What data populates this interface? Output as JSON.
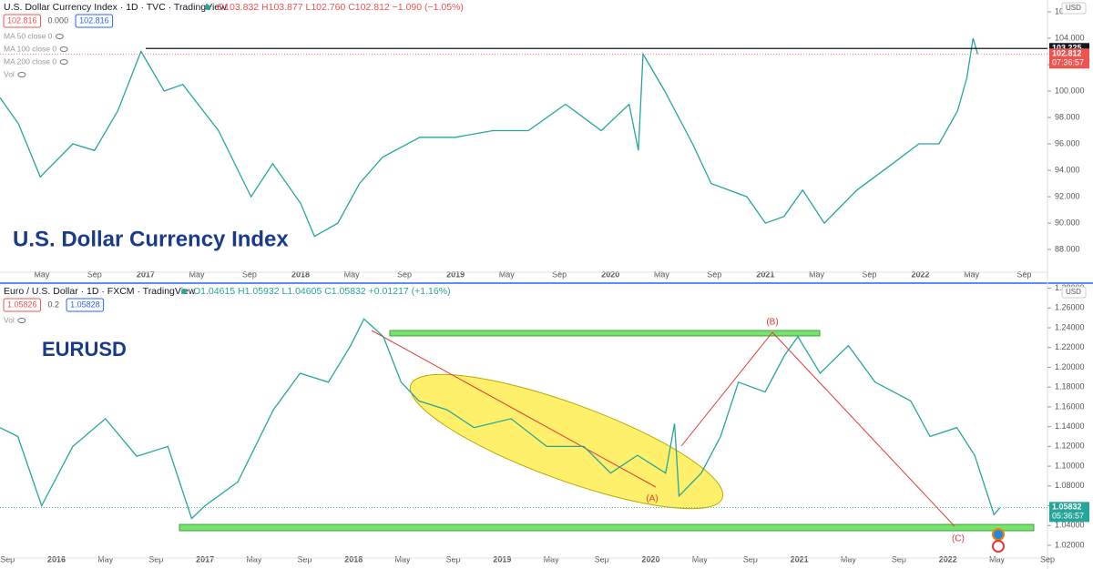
{
  "chart_data": [
    {
      "type": "line",
      "title": "U.S. Dollar Currency Index · 1D · TVC · TradingView",
      "ohlc": "O103.832 H103.877 L102.760 C102.812 −1.090 (−1.05%)",
      "legend_values": [
        "102.816",
        "0.000",
        "102.816"
      ],
      "indicators": [
        "MA 50 close 0",
        "MA 100 close 0",
        "MA 200 close 0",
        "Vol"
      ],
      "watermark": "U.S. Dollar Currency Index",
      "currency": "USD",
      "color": "#26a69a",
      "x": [
        2016.06,
        2016.18,
        2016.32,
        2016.53,
        2016.67,
        2016.82,
        2016.97,
        2017.12,
        2017.24,
        2017.47,
        2017.68,
        2017.82,
        2018.0,
        2018.09,
        2018.24,
        2018.38,
        2018.53,
        2018.77,
        2019.0,
        2019.24,
        2019.47,
        2019.71,
        2019.94,
        2020.12,
        2020.18,
        2020.21,
        2020.35,
        2020.53,
        2020.65,
        2020.88,
        2021.0,
        2021.12,
        2021.24,
        2021.38,
        2021.59,
        2021.82,
        2021.99,
        2022.12,
        2022.24,
        2022.3,
        2022.34,
        2022.37
      ],
      "values": [
        99.5,
        97.5,
        93.5,
        96,
        95.5,
        98.5,
        103,
        100,
        100.5,
        97,
        92,
        94.5,
        91.5,
        89,
        90,
        93,
        95,
        96.5,
        96.5,
        97,
        97,
        99,
        97,
        99,
        95.5,
        102.8,
        100,
        96,
        93,
        92,
        90,
        90.5,
        92.5,
        90,
        92.5,
        94.5,
        96,
        96,
        98.5,
        101,
        104,
        102.8
      ],
      "xlim": [
        2016.06,
        2022.82
      ],
      "xticks": [
        {
          "value": 2016.33,
          "label": "May"
        },
        {
          "value": 2016.67,
          "label": "Sep"
        },
        2017,
        {
          "value": 2017.33,
          "label": "May"
        },
        {
          "value": 2017.67,
          "label": "Sep"
        },
        2018,
        {
          "value": 2018.33,
          "label": "May"
        },
        {
          "value": 2018.67,
          "label": "Sep"
        },
        2019,
        {
          "value": 2019.33,
          "label": "May"
        },
        {
          "value": 2019.67,
          "label": "Sep"
        },
        2020,
        {
          "value": 2020.33,
          "label": "May"
        },
        {
          "value": 2020.67,
          "label": "Sep"
        },
        2021,
        {
          "value": 2021.33,
          "label": "May"
        },
        {
          "value": 2021.67,
          "label": "Sep"
        },
        2022,
        {
          "value": 2022.33,
          "label": "May"
        },
        {
          "value": 2022.67,
          "label": "Sep"
        }
      ],
      "ylim": [
        86.35,
        106.07
      ],
      "yticks": [
        {
          "value": 88,
          "label": "88.000"
        },
        {
          "value": 90,
          "label": "90.000"
        },
        {
          "value": 92,
          "label": "92.000"
        },
        {
          "value": 94,
          "label": "94.000"
        },
        {
          "value": 96,
          "label": "96.000"
        },
        {
          "value": 98,
          "label": "98.000"
        },
        {
          "value": 100,
          "label": "100.000"
        },
        {
          "value": 102,
          "label": "102.000"
        },
        {
          "value": 104,
          "label": "104.000"
        },
        {
          "value": 106,
          "label": "106.000"
        }
      ],
      "hline": 103.225,
      "last_price": 102.812,
      "last_color": "#ef5350",
      "countdown": "07:36:57"
    },
    {
      "type": "line",
      "title": "Euro / U.S. Dollar · 1D · FXCM · TradingView",
      "ohlc": "O1.04615 H1.05932 L1.04605 C1.05832 +0.01217 (+1.16%)",
      "legend_values": [
        "1.05826",
        "0.2",
        "1.05828"
      ],
      "indicators": [
        "Vol"
      ],
      "watermark": "EURUSD",
      "currency": "USD",
      "color": "#26a69a",
      "annotations": [
        "(A)",
        "(B)",
        "(C)"
      ],
      "x": [
        2015.62,
        2015.74,
        2015.9,
        2016.11,
        2016.33,
        2016.54,
        2016.75,
        2016.91,
        2017.0,
        2017.22,
        2017.46,
        2017.64,
        2017.83,
        2017.98,
        2018.07,
        2018.2,
        2018.32,
        2018.44,
        2018.63,
        2018.81,
        2019.06,
        2019.3,
        2019.55,
        2019.73,
        2019.91,
        2020.1,
        2020.16,
        2020.19,
        2020.34,
        2020.47,
        2020.59,
        2020.77,
        2020.9,
        2020.99,
        2021.14,
        2021.33,
        2021.51,
        2021.75,
        2021.88,
        2022.06,
        2022.18,
        2022.31,
        2022.35
      ],
      "values": [
        1.139,
        1.13,
        1.06,
        1.12,
        1.148,
        1.11,
        1.12,
        1.047,
        1.06,
        1.084,
        1.157,
        1.194,
        1.185,
        1.222,
        1.249,
        1.231,
        1.185,
        1.166,
        1.157,
        1.139,
        1.148,
        1.12,
        1.12,
        1.093,
        1.111,
        1.093,
        1.143,
        1.07,
        1.093,
        1.13,
        1.185,
        1.175,
        1.212,
        1.231,
        1.194,
        1.222,
        1.185,
        1.166,
        1.13,
        1.139,
        1.111,
        1.051,
        1.058
      ],
      "xlim": [
        2015.62,
        2022.67
      ],
      "xticks": [
        {
          "value": 2015.67,
          "label": "Sep"
        },
        2016,
        {
          "value": 2016.33,
          "label": "May"
        },
        {
          "value": 2016.67,
          "label": "Sep"
        },
        2017,
        {
          "value": 2017.33,
          "label": "May"
        },
        {
          "value": 2017.67,
          "label": "Sep"
        },
        2018,
        {
          "value": 2018.33,
          "label": "May"
        },
        {
          "value": 2018.67,
          "label": "Sep"
        },
        2019,
        {
          "value": 2019.33,
          "label": "May"
        },
        {
          "value": 2019.67,
          "label": "Sep"
        },
        2020,
        {
          "value": 2020.33,
          "label": "May"
        },
        {
          "value": 2020.67,
          "label": "Sep"
        },
        2021,
        {
          "value": 2021.33,
          "label": "May"
        },
        {
          "value": 2021.67,
          "label": "Sep"
        },
        2022,
        {
          "value": 2022.33,
          "label": "May"
        },
        {
          "value": 2022.67,
          "label": "Sep"
        }
      ],
      "ylim": [
        1.008,
        1.2833
      ],
      "yticks": [
        {
          "value": 1.02,
          "label": "1.02000"
        },
        {
          "value": 1.04,
          "label": "1.04000"
        },
        {
          "value": 1.06,
          "label": "1.06000"
        },
        {
          "value": 1.08,
          "label": "1.08000"
        },
        {
          "value": 1.1,
          "label": "1.10000"
        },
        {
          "value": 1.12,
          "label": "1.12000"
        },
        {
          "value": 1.14,
          "label": "1.14000"
        },
        {
          "value": 1.16,
          "label": "1.16000"
        },
        {
          "value": 1.18,
          "label": "1.18000"
        },
        {
          "value": 1.2,
          "label": "1.20000"
        },
        {
          "value": 1.22,
          "label": "1.22000"
        },
        {
          "value": 1.24,
          "label": "1.24000"
        },
        {
          "value": 1.26,
          "label": "1.26000"
        },
        {
          "value": 1.28,
          "label": "1.28000"
        }
      ],
      "last_price": 1.05832,
      "last_color": "#26a69a",
      "countdown": "05:36:57"
    }
  ]
}
